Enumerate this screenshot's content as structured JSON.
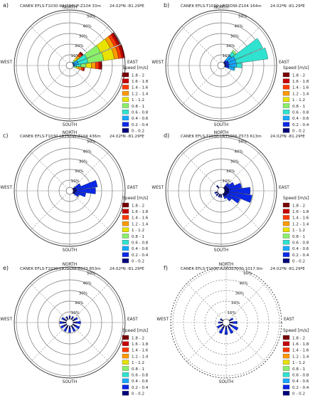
{
  "speed_bins": [
    {
      "label": "1.8 - 2",
      "color": "#7a0000"
    },
    {
      "label": "1.6 - 1.8",
      "color": "#c80000"
    },
    {
      "label": "1.4 - 1.6",
      "color": "#ff3a00"
    },
    {
      "label": "1.2 - 1.4",
      "color": "#ff9a00"
    },
    {
      "label": "1 - 1.2",
      "color": "#e8e200"
    },
    {
      "label": "0.8 - 1",
      "color": "#8af06a"
    },
    {
      "label": "0.6 - 0.8",
      "color": "#2fe3d0"
    },
    {
      "label": "0.4 - 0.6",
      "color": "#18a7ff"
    },
    {
      "label": "0.2 - 0.4",
      "color": "#0a28e6"
    },
    {
      "label": "0 - 0.2",
      "color": "#00007a"
    }
  ],
  "chart_data": [
    {
      "type": "windrose",
      "panel_label": "a)",
      "title": "CANEK   EFLS-T1030-WH300UP-Z104 33m",
      "coords": "24.02ºN   -81.29ºE",
      "directions": [
        "NORTH",
        "EAST",
        "SOUTH",
        "WEST"
      ],
      "rings": [
        "10%",
        "20%",
        "30%",
        "40%",
        "50%"
      ],
      "legend_title": "Speed [m/s]",
      "stacks": [
        {
          "angle": 45,
          "seg": [
            1,
            1,
            2,
            3,
            3,
            2,
            1,
            0,
            0,
            0
          ]
        },
        {
          "angle": 60,
          "seg": [
            1,
            2,
            3,
            4,
            10,
            14,
            9,
            4,
            1,
            0
          ]
        },
        {
          "angle": 75,
          "seg": [
            1,
            2,
            3,
            4,
            10,
            15,
            9,
            4,
            1,
            0
          ]
        },
        {
          "angle": 90,
          "seg": [
            1,
            2,
            3,
            4,
            5,
            5,
            4,
            2,
            1,
            0
          ]
        },
        {
          "angle": 105,
          "seg": [
            0,
            1,
            2,
            3,
            2,
            2,
            1,
            0,
            0,
            0
          ]
        }
      ]
    },
    {
      "type": "windrose",
      "panel_label": "b)",
      "title": "CANEK   EFLS-T1030-LR75DW-Z104  164m",
      "coords": "24.02ºN   -81.29ºE",
      "directions": [
        "NORTH",
        "EAST",
        "SOUTH",
        "WEST"
      ],
      "rings": [
        "10%",
        "20%",
        "30%",
        "40%",
        "50%"
      ],
      "legend_title": "Speed [m/s]",
      "stacks": [
        {
          "angle": 45,
          "seg": [
            0,
            0,
            0,
            0,
            0,
            2,
            4,
            6,
            2,
            1
          ]
        },
        {
          "angle": 60,
          "seg": [
            0,
            0,
            0,
            0,
            0,
            0,
            28,
            7,
            3,
            1
          ]
        },
        {
          "angle": 75,
          "seg": [
            0,
            0,
            0,
            0,
            0,
            0,
            30,
            7,
            3,
            1
          ]
        },
        {
          "angle": 90,
          "seg": [
            0,
            0,
            0,
            0,
            0,
            0,
            5,
            7,
            3,
            1
          ]
        },
        {
          "angle": 105,
          "seg": [
            0,
            0,
            0,
            0,
            0,
            0,
            1,
            5,
            3,
            1
          ]
        }
      ]
    },
    {
      "type": "windrose",
      "panel_label": "c)",
      "title": "CANEK   EFLS-T1030-LR75DW-Z104  436m",
      "coords": "24.02ºN   -81.29ºE",
      "directions": [
        "NORTH",
        "EAST",
        "SOUTH",
        "WEST"
      ],
      "rings": [
        "10%",
        "20%",
        "30%",
        "40%",
        "50%"
      ],
      "legend_title": "Speed [m/s]",
      "stacks": [
        {
          "angle": 60,
          "seg": [
            0,
            0,
            0,
            0,
            0,
            0,
            0,
            0,
            6,
            2
          ]
        },
        {
          "angle": 75,
          "seg": [
            0,
            0,
            0,
            0,
            0,
            0,
            0,
            0,
            20,
            3
          ]
        },
        {
          "angle": 90,
          "seg": [
            0,
            0,
            0,
            0,
            0,
            0,
            0,
            0,
            18,
            3
          ]
        },
        {
          "angle": 105,
          "seg": [
            0,
            0,
            0,
            0,
            0,
            0,
            0,
            0,
            10,
            2
          ]
        },
        {
          "angle": 120,
          "seg": [
            0,
            0,
            0,
            0,
            0,
            0,
            0,
            0,
            4,
            2
          ]
        }
      ]
    },
    {
      "type": "windrose",
      "panel_label": "d)",
      "title": "CANEK   EFLS-T1030-LR75DW-Z573  613m",
      "coords": "24.02ºN   -81.29ºE",
      "directions": [
        "NORTH",
        "EAST",
        "SOUTH",
        "WEST"
      ],
      "rings": [
        "10%",
        "20%",
        "30%",
        "40%",
        "50%"
      ],
      "legend_title": "Speed [m/s]",
      "stacks": [
        {
          "angle": 45,
          "seg": [
            0,
            0,
            0,
            0,
            0,
            0,
            0,
            0,
            3,
            3
          ]
        },
        {
          "angle": 60,
          "seg": [
            0,
            0,
            0,
            0,
            0,
            0,
            0,
            0,
            7,
            3
          ]
        },
        {
          "angle": 75,
          "seg": [
            0,
            0,
            0,
            0,
            0,
            0,
            0,
            0,
            12,
            4
          ]
        },
        {
          "angle": 90,
          "seg": [
            0,
            0,
            0,
            0,
            0,
            0,
            0,
            0,
            20,
            4
          ]
        },
        {
          "angle": 105,
          "seg": [
            0,
            0,
            0,
            0,
            0,
            0,
            0,
            0,
            22,
            4
          ]
        },
        {
          "angle": 120,
          "seg": [
            0,
            0,
            0,
            0,
            0,
            0,
            0,
            0,
            13,
            3
          ]
        },
        {
          "angle": 135,
          "seg": [
            0,
            0,
            0,
            0,
            0,
            0,
            0,
            0,
            6,
            3
          ]
        },
        {
          "angle": 150,
          "seg": [
            0,
            0,
            0,
            0,
            0,
            0,
            0,
            0,
            3,
            2
          ]
        },
        {
          "angle": 180,
          "seg": [
            0,
            0,
            0,
            0,
            0,
            0,
            0,
            0,
            1,
            2
          ]
        },
        {
          "angle": 200,
          "seg": [
            0,
            0,
            0,
            0,
            0,
            0,
            0,
            0,
            1,
            2
          ]
        },
        {
          "angle": 225,
          "seg": [
            0,
            0,
            0,
            0,
            0,
            0,
            0,
            0,
            1,
            2
          ]
        },
        {
          "angle": 250,
          "seg": [
            0,
            0,
            0,
            0,
            0,
            0,
            0,
            0,
            1,
            2
          ]
        },
        {
          "angle": 320,
          "seg": [
            0,
            0,
            0,
            0,
            0,
            0,
            0,
            0,
            1,
            2
          ]
        }
      ]
    },
    {
      "type": "windrose",
      "panel_label": "e)",
      "title": "CANEK   EFLS-T1030-LR75DW-Z573  853m",
      "coords": "24.02ºN   -81.29ºE",
      "directions": [
        "NORTH",
        "EAST",
        "SOUTH",
        "WEST"
      ],
      "rings": [
        "10%",
        "20%",
        "30%",
        "40%",
        "50%"
      ],
      "legend_title": "Speed [m/s]",
      "stacks": [
        {
          "angle": 30,
          "seg": [
            0,
            0,
            0,
            0,
            0,
            0,
            0,
            0,
            1,
            2
          ]
        },
        {
          "angle": 60,
          "seg": [
            0,
            0,
            0,
            0,
            0,
            0,
            0,
            0,
            2,
            3
          ]
        },
        {
          "angle": 90,
          "seg": [
            0,
            0,
            0,
            0,
            0,
            0,
            0,
            0,
            4,
            3
          ]
        },
        {
          "angle": 120,
          "seg": [
            0,
            0,
            0,
            0,
            0,
            0,
            0,
            0,
            4,
            3
          ]
        },
        {
          "angle": 150,
          "seg": [
            0,
            0,
            0,
            0,
            0,
            0,
            0,
            0,
            3,
            3
          ]
        },
        {
          "angle": 180,
          "seg": [
            0,
            0,
            0,
            0,
            0,
            0,
            0,
            0,
            3,
            3
          ]
        },
        {
          "angle": 210,
          "seg": [
            0,
            0,
            0,
            0,
            0,
            0,
            0,
            0,
            3,
            3
          ]
        },
        {
          "angle": 240,
          "seg": [
            0,
            0,
            0,
            0,
            0,
            0,
            0,
            0,
            3,
            3
          ]
        },
        {
          "angle": 270,
          "seg": [
            0,
            0,
            0,
            0,
            0,
            0,
            0,
            0,
            3,
            3
          ]
        },
        {
          "angle": 300,
          "seg": [
            0,
            0,
            0,
            0,
            0,
            0,
            0,
            0,
            2,
            3
          ]
        },
        {
          "angle": 330,
          "seg": [
            0,
            0,
            0,
            0,
            0,
            0,
            0,
            0,
            1,
            2
          ]
        },
        {
          "angle": 0,
          "seg": [
            0,
            0,
            0,
            0,
            0,
            0,
            0,
            0,
            1,
            2
          ]
        }
      ]
    },
    {
      "type": "windrose",
      "panel_label": "f)",
      "title": "CANEK   EFLS-T1030-A2ROS7070  1017.0m",
      "coords": "24.02ºN   -81.29ºE",
      "directions": [
        "NORTH",
        "EAST",
        "SOUTH",
        "WEST"
      ],
      "rings": [
        "10%",
        "20%",
        "30%",
        "40%",
        "50%"
      ],
      "legend_title": "Speed [m/s]",
      "dashed": true,
      "stacks": [
        {
          "angle": 60,
          "seg": [
            0,
            0,
            0,
            0,
            0,
            0,
            0,
            0,
            2,
            2
          ]
        },
        {
          "angle": 90,
          "seg": [
            0,
            0,
            0,
            0,
            0,
            0,
            0,
            0,
            4,
            3
          ]
        },
        {
          "angle": 120,
          "seg": [
            0,
            0,
            0,
            0,
            0,
            0,
            0,
            0,
            6,
            3
          ]
        },
        {
          "angle": 150,
          "seg": [
            0,
            0,
            0,
            0,
            0,
            0,
            0,
            0,
            5,
            3
          ]
        },
        {
          "angle": 180,
          "seg": [
            0,
            0,
            0,
            0,
            0,
            0,
            0,
            0,
            5,
            3
          ]
        },
        {
          "angle": 210,
          "seg": [
            0,
            0,
            0,
            0,
            0,
            0,
            0,
            0,
            5,
            3
          ]
        },
        {
          "angle": 240,
          "seg": [
            0,
            0,
            0,
            0,
            0,
            0,
            0,
            0,
            3,
            3
          ]
        },
        {
          "angle": 270,
          "seg": [
            0,
            0,
            0,
            0,
            0,
            0,
            0,
            0,
            2,
            2
          ]
        },
        {
          "angle": 300,
          "seg": [
            0,
            0,
            0,
            0,
            0,
            0,
            0,
            0,
            1,
            2
          ]
        }
      ]
    }
  ]
}
